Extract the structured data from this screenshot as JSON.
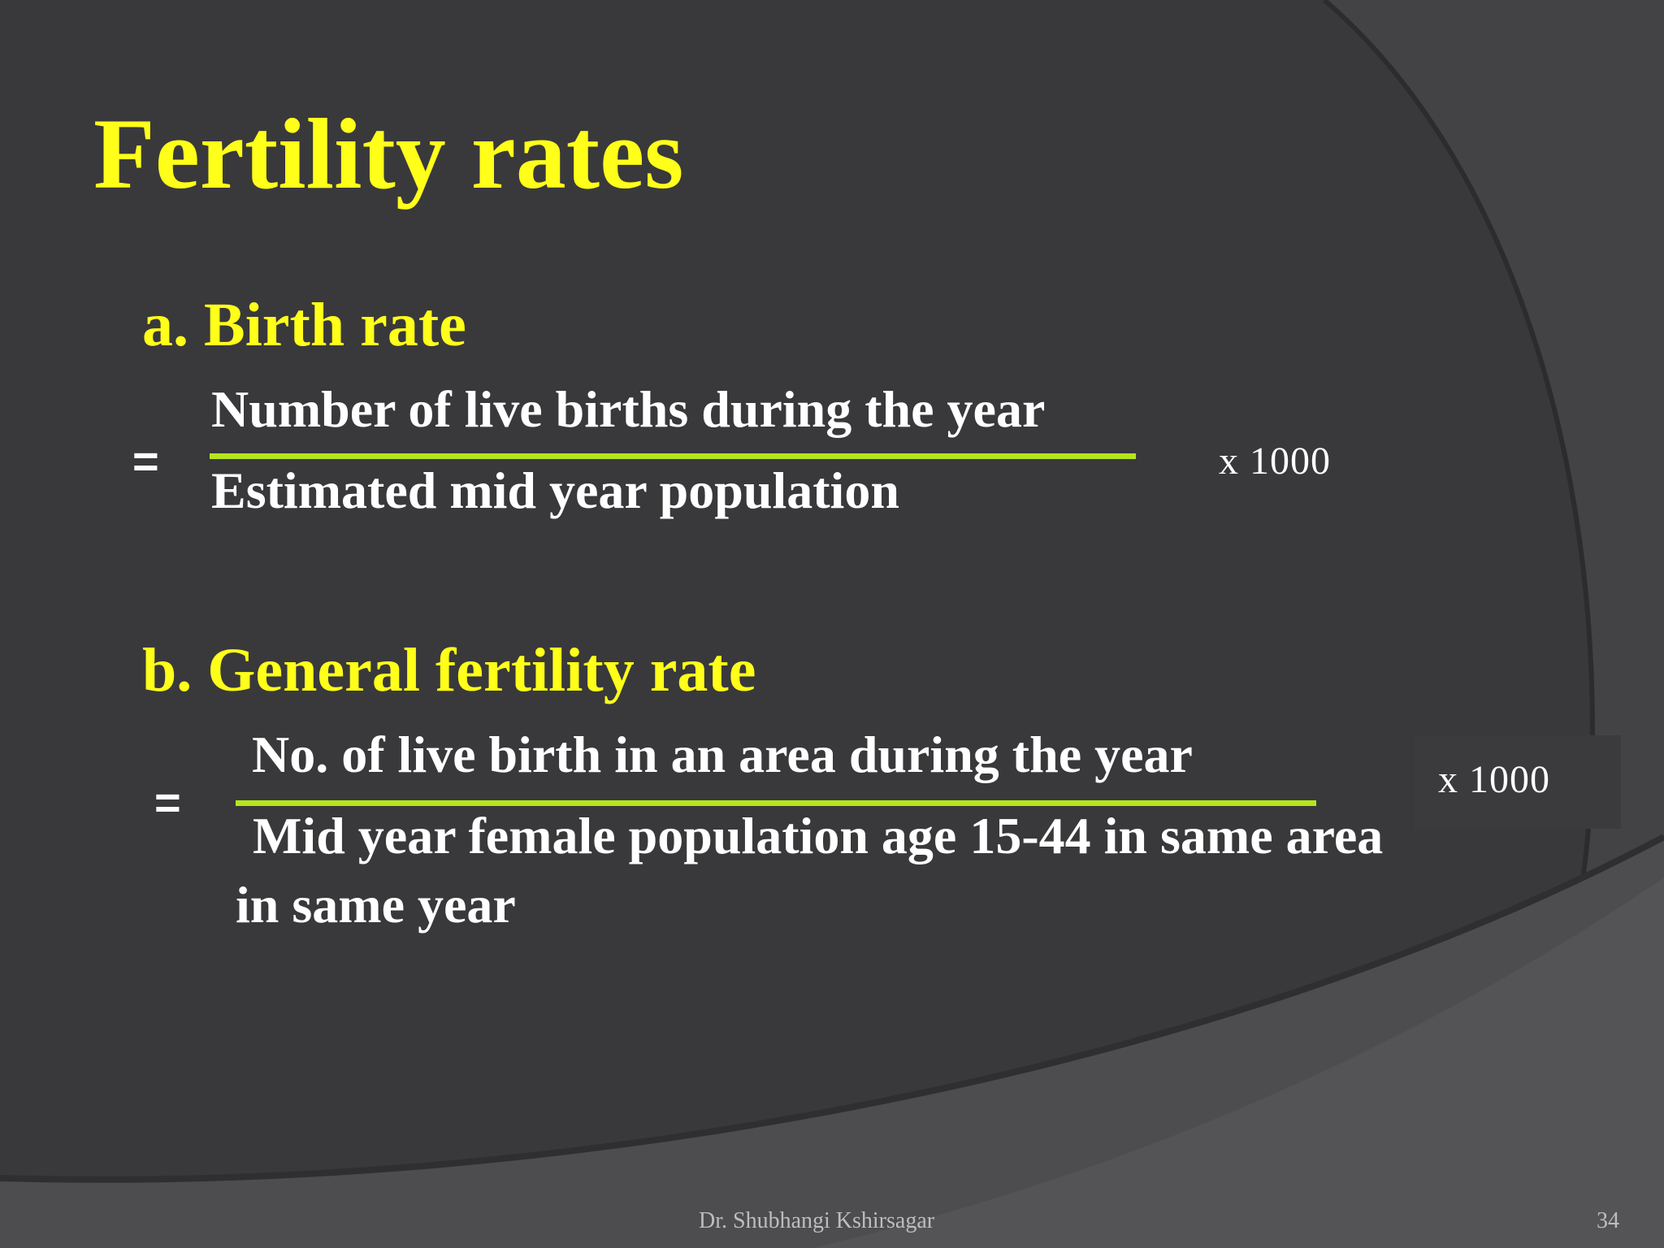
{
  "slide": {
    "title": "Fertility rates",
    "sections": [
      {
        "heading": "a. Birth rate",
        "equals": "=",
        "numerator": "Number of live births during the year",
        "denominator": "Estimated mid year population",
        "multiplier": "x 1000"
      },
      {
        "heading": "b. General fertility rate",
        "equals": "=",
        "numerator": "No. of live birth in an area during the year",
        "denominator_line1": " Mid year female population age 15-44 in same area",
        "denominator_line2": "in same year",
        "multiplier": "x 1000"
      }
    ],
    "footer": {
      "author": "Dr. Shubhangi Kshirsagar",
      "page_number": "34"
    }
  },
  "colors": {
    "title": "#ffff1a",
    "body_text": "#ffffff",
    "fraction_rule": "#b5e61d",
    "background": "#3a3a3c"
  }
}
